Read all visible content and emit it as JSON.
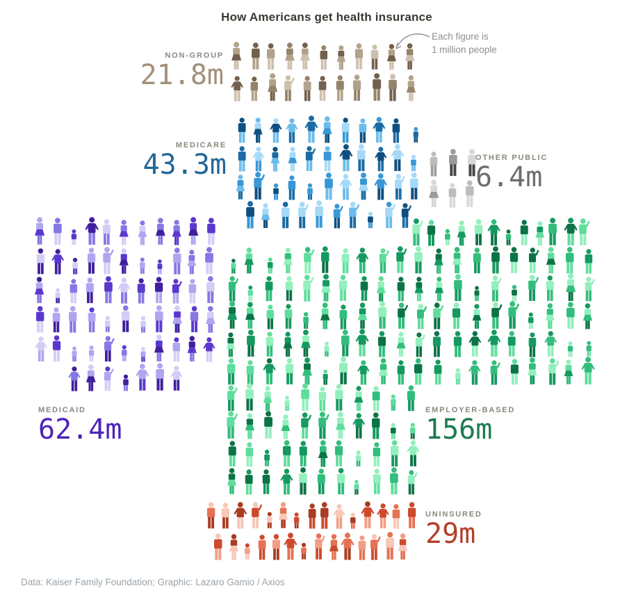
{
  "title": "How Americans get health insurance",
  "annotation": {
    "line1": "Each figure is",
    "line2": "1 million people"
  },
  "footer": "Data: Kaiser Family Foundation; Graphic: Lazaro Gamio / Axios",
  "chart_data": {
    "type": "pictogram",
    "title": "How Americans get health insurance",
    "unit_note": "Each figure is 1 million people",
    "unit_millions_per_figure": 1,
    "source": "Kaiser Family Foundation",
    "credit": "Lazaro Gamio / Axios",
    "series": [
      {
        "key": "non_group",
        "label": "NON-GROUP",
        "value_millions": 21.8,
        "value_label": "21.8m",
        "number_color": "#a3907a",
        "palette": [
          "#cdc1ae",
          "#b3a28b",
          "#96836b",
          "#73614d"
        ]
      },
      {
        "key": "medicare",
        "label": "MEDICARE",
        "value_millions": 43.3,
        "value_label": "43.3m",
        "number_color": "#236898",
        "palette": [
          "#a6d9f7",
          "#6cbcec",
          "#3897d6",
          "#1a6ba3",
          "#0f4f80"
        ]
      },
      {
        "key": "other_public",
        "label": "OTHER PUBLIC",
        "value_millions": 6.4,
        "value_label": "6.4m",
        "number_color": "#6d6d6d",
        "palette": [
          "#d8d8d8",
          "#bcbcbc",
          "#9b9b9b",
          "#474747"
        ]
      },
      {
        "key": "medicaid",
        "label": "MEDICAID",
        "value_millions": 62.4,
        "value_label": "62.4m",
        "number_color": "#4c24b8",
        "palette": [
          "#d3cdf6",
          "#b0a6ef",
          "#8678e4",
          "#5b38cd",
          "#40209f"
        ]
      },
      {
        "key": "employer_based",
        "label": "EMPLOYER-BASED",
        "value_millions": 156,
        "value_label": "156m",
        "number_color": "#1b7b4f",
        "palette": [
          "#93efbc",
          "#5fdd9c",
          "#32bd7b",
          "#159960",
          "#0c7347"
        ]
      },
      {
        "key": "uninsured",
        "label": "UNINSURED",
        "value_millions": 29,
        "value_label": "29m",
        "number_color": "#b2402a",
        "palette": [
          "#f8c7b5",
          "#f29e86",
          "#e57253",
          "#cd4a2d",
          "#a93c22"
        ]
      }
    ]
  }
}
